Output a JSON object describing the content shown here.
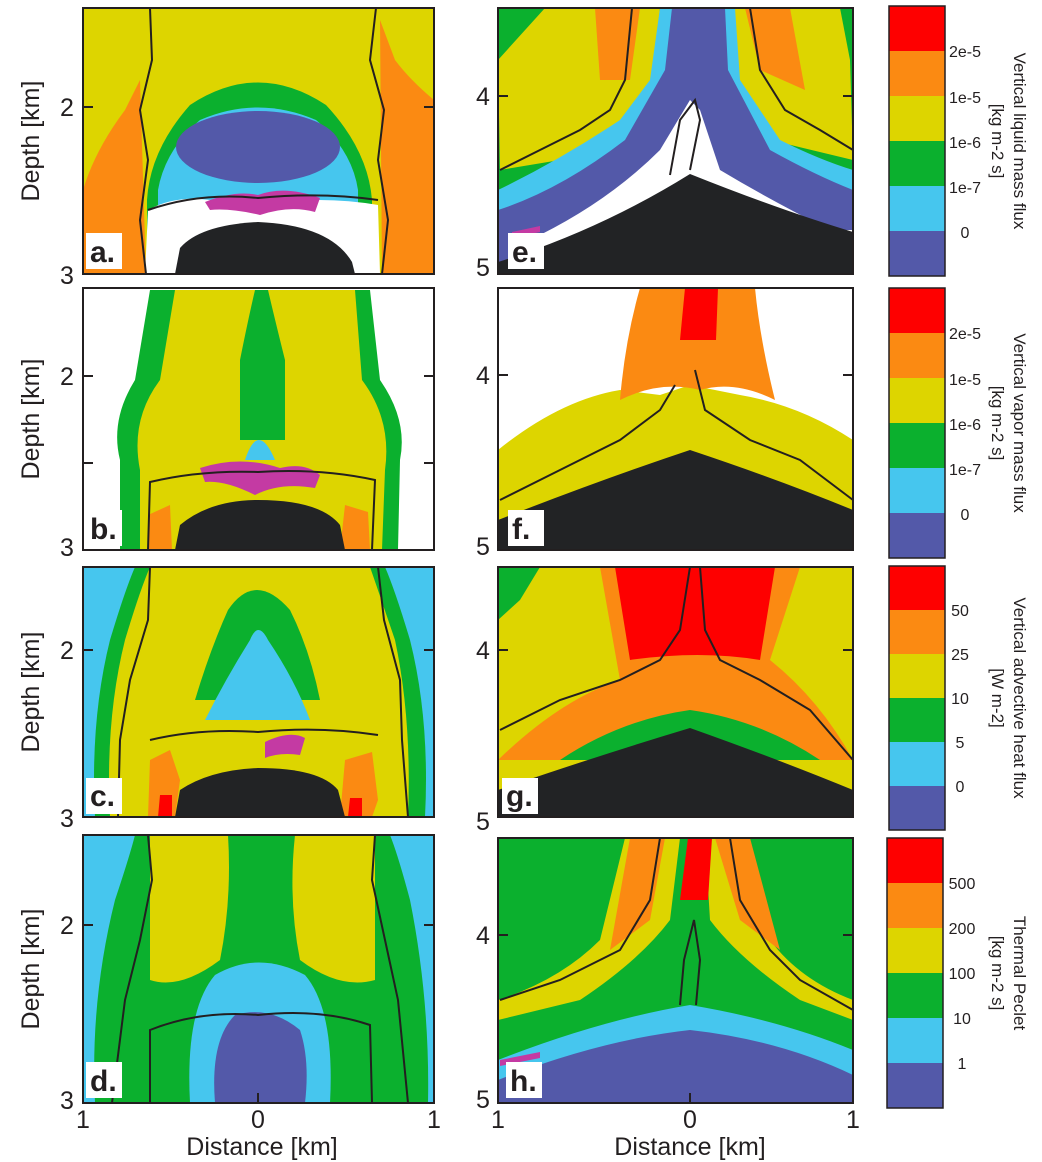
{
  "colors": {
    "red": "#fe0000",
    "orange": "#fb8a12",
    "yellow": "#ddd500",
    "green": "#0bb02e",
    "cyan": "#46c6ee",
    "blue": "#5359a9",
    "black": "#222325",
    "white": "#ffffff",
    "magenta": "#c43aa3",
    "contour": "#231f20"
  },
  "axes": {
    "depth_label": "Depth [km]",
    "distance_label": "Distance [km]",
    "left_depth_ticks": [
      "2",
      "3"
    ],
    "right_depth_ticks": [
      "4",
      "5"
    ],
    "distance_ticks": [
      "1",
      "0",
      "1"
    ]
  },
  "panels": {
    "a": "a.",
    "b": "b.",
    "c": "c.",
    "d": "d.",
    "e": "e.",
    "f": "f.",
    "g": "g.",
    "h": "h."
  },
  "colorbars": [
    {
      "title_lines": [
        "Vertical liquid mass flux",
        "[kg m-2 s]"
      ],
      "labels": [
        "2e-5",
        "1e-5",
        "1e-6",
        "1e-7",
        "0"
      ]
    },
    {
      "title_lines": [
        "Vertical vapor mass flux",
        "[kg m-2 s]"
      ],
      "labels": [
        "2e-5",
        "1e-5",
        "1e-6",
        "1e-7",
        "0"
      ]
    },
    {
      "title_lines": [
        "Vertical advective heat flux",
        "[W m-2]"
      ],
      "labels": [
        "50",
        "25",
        "10",
        "5",
        "0"
      ]
    },
    {
      "title_lines": [
        "Thermal Peclet",
        "[kg m-2 s]"
      ],
      "labels": [
        "500",
        "200",
        "100",
        "10",
        "1"
      ]
    }
  ],
  "chart_data": {
    "type": "heatmap",
    "layout": "4 rows x 2 columns of contour maps with colorbars",
    "xlabel": "Distance [km]",
    "ylabel": "Depth [km]",
    "xlim_km": [
      -1,
      1
    ],
    "x_ticks": [
      "1",
      "0",
      "1"
    ],
    "left_column_depth_km": [
      1.5,
      3
    ],
    "left_column_y_ticks": [
      "2",
      "3"
    ],
    "right_column_depth_km": [
      3.5,
      5
    ],
    "right_column_y_ticks": [
      "4",
      "5"
    ],
    "rows": [
      {
        "left": "a.",
        "right": "e.",
        "quantity": "Vertical liquid mass flux",
        "unit": "[kg m-2 s]",
        "levels": [
          "0",
          "1e-7",
          "1e-6",
          "1e-5",
          "2e-5"
        ]
      },
      {
        "left": "b.",
        "right": "f.",
        "quantity": "Vertical vapor mass flux",
        "unit": "[kg m-2 s]",
        "levels": [
          "0",
          "1e-7",
          "1e-6",
          "1e-5",
          "2e-5"
        ]
      },
      {
        "left": "c.",
        "right": "g.",
        "quantity": "Vertical advective heat flux",
        "unit": "[W m-2]",
        "levels": [
          "0",
          "5",
          "10",
          "25",
          "50"
        ]
      },
      {
        "left": "d.",
        "right": "h.",
        "quantity": "Thermal Peclet",
        "unit": "[kg m-2 s]",
        "levels": [
          "1",
          "10",
          "100",
          "200",
          "500"
        ]
      }
    ]
  }
}
